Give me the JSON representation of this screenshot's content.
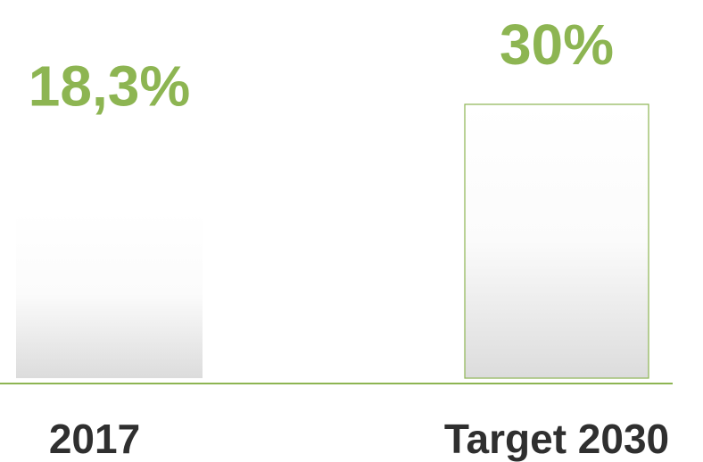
{
  "chart_data": {
    "type": "bar",
    "categories": [
      "2017",
      "Target 2030"
    ],
    "values": [
      18.3,
      30
    ],
    "value_labels": [
      "18,3%",
      "30%"
    ],
    "color": "#8db552",
    "label_color": "#8db552"
  }
}
